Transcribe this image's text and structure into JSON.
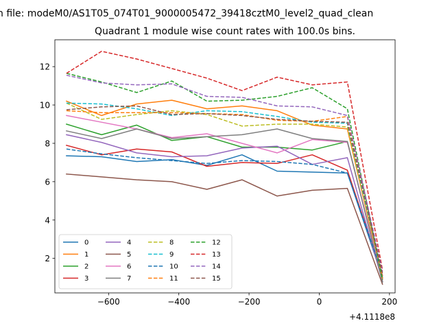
{
  "chart_data": {
    "type": "line",
    "suptitle": "n file: modeM0/AS1T05_074T01_9000005472_39418cztM0_level2_quad_clean",
    "title": "Quadrant 1 module wise count rates with 100.0s bins.",
    "xlabel": "",
    "ylabel": "",
    "x_offset_label": "+4.1118e8",
    "x": [
      -720,
      -620,
      -520,
      -420,
      -320,
      -220,
      -120,
      -20,
      80,
      180
    ],
    "xlim": [
      -753,
      216
    ],
    "ylim": [
      0.2,
      13.4
    ],
    "xticks": [
      -600,
      -400,
      -200,
      0,
      200
    ],
    "xtick_labels": [
      "−600",
      "−400",
      "−200",
      "0",
      "200"
    ],
    "yticks": [
      2,
      4,
      6,
      8,
      10,
      12
    ],
    "ytick_labels": [
      "2",
      "4",
      "6",
      "8",
      "10",
      "12"
    ],
    "grid": false,
    "legend_position": "lower-left",
    "series": [
      {
        "name": "0",
        "color": "#1f77b4",
        "style": "solid",
        "values": [
          7.35,
          7.3,
          7.05,
          7.15,
          6.85,
          7.4,
          6.55,
          6.5,
          6.45,
          1.0
        ]
      },
      {
        "name": "1",
        "color": "#ff7f0e",
        "style": "solid",
        "values": [
          10.2,
          9.45,
          10.05,
          10.25,
          9.8,
          9.95,
          9.7,
          8.95,
          8.75,
          0.9
        ]
      },
      {
        "name": "2",
        "color": "#2ca02c",
        "style": "solid",
        "values": [
          9.0,
          8.45,
          8.95,
          8.15,
          8.35,
          7.8,
          7.8,
          7.65,
          8.1,
          0.8
        ]
      },
      {
        "name": "3",
        "color": "#d62728",
        "style": "solid",
        "values": [
          7.9,
          7.4,
          7.7,
          7.55,
          6.8,
          7.0,
          6.95,
          7.4,
          6.6,
          1.1
        ]
      },
      {
        "name": "4",
        "color": "#9467bd",
        "style": "solid",
        "values": [
          8.45,
          8.05,
          7.5,
          7.3,
          7.35,
          7.75,
          7.85,
          6.9,
          7.25,
          0.8
        ]
      },
      {
        "name": "5",
        "color": "#8c564b",
        "style": "solid",
        "values": [
          6.4,
          6.25,
          6.1,
          6.0,
          5.6,
          6.1,
          5.25,
          5.55,
          5.65,
          0.65
        ]
      },
      {
        "name": "6",
        "color": "#e377c2",
        "style": "solid",
        "values": [
          9.45,
          9.1,
          8.75,
          8.3,
          8.5,
          8.0,
          7.5,
          8.2,
          8.05,
          0.95
        ]
      },
      {
        "name": "7",
        "color": "#7f7f7f",
        "style": "solid",
        "values": [
          8.65,
          8.25,
          8.75,
          8.25,
          8.35,
          8.45,
          8.75,
          8.25,
          8.1,
          0.75
        ]
      },
      {
        "name": "8",
        "color": "#bcbd22",
        "style": "dashed",
        "values": [
          10.1,
          9.25,
          9.5,
          9.7,
          9.5,
          8.9,
          9.0,
          9.0,
          8.85,
          1.0
        ]
      },
      {
        "name": "9",
        "color": "#17becf",
        "style": "dashed",
        "values": [
          10.1,
          10.05,
          9.8,
          9.45,
          9.7,
          9.65,
          9.4,
          9.1,
          9.05,
          1.0
        ]
      },
      {
        "name": "10",
        "color": "#1f77b4",
        "style": "dashed",
        "values": [
          7.7,
          7.45,
          7.25,
          7.1,
          6.95,
          7.1,
          7.05,
          6.9,
          6.45,
          1.2
        ]
      },
      {
        "name": "11",
        "color": "#ff7f0e",
        "style": "dashed",
        "values": [
          9.7,
          9.6,
          9.6,
          9.6,
          9.55,
          9.5,
          9.2,
          9.15,
          9.4,
          0.95
        ]
      },
      {
        "name": "12",
        "color": "#2ca02c",
        "style": "dashed",
        "values": [
          11.65,
          11.2,
          10.65,
          11.25,
          10.2,
          10.25,
          10.45,
          10.9,
          9.8,
          0.9
        ]
      },
      {
        "name": "13",
        "color": "#d62728",
        "style": "dashed",
        "values": [
          11.65,
          12.8,
          12.4,
          11.9,
          11.4,
          10.75,
          11.45,
          11.05,
          11.2,
          1.4
        ]
      },
      {
        "name": "14",
        "color": "#9467bd",
        "style": "dashed",
        "values": [
          11.55,
          11.15,
          11.05,
          11.1,
          10.45,
          10.4,
          9.95,
          9.9,
          9.45,
          1.3
        ]
      },
      {
        "name": "15",
        "color": "#8c564b",
        "style": "dashed",
        "values": [
          9.75,
          9.9,
          9.95,
          9.5,
          9.55,
          9.45,
          9.25,
          9.15,
          9.1,
          1.2
        ]
      }
    ]
  }
}
